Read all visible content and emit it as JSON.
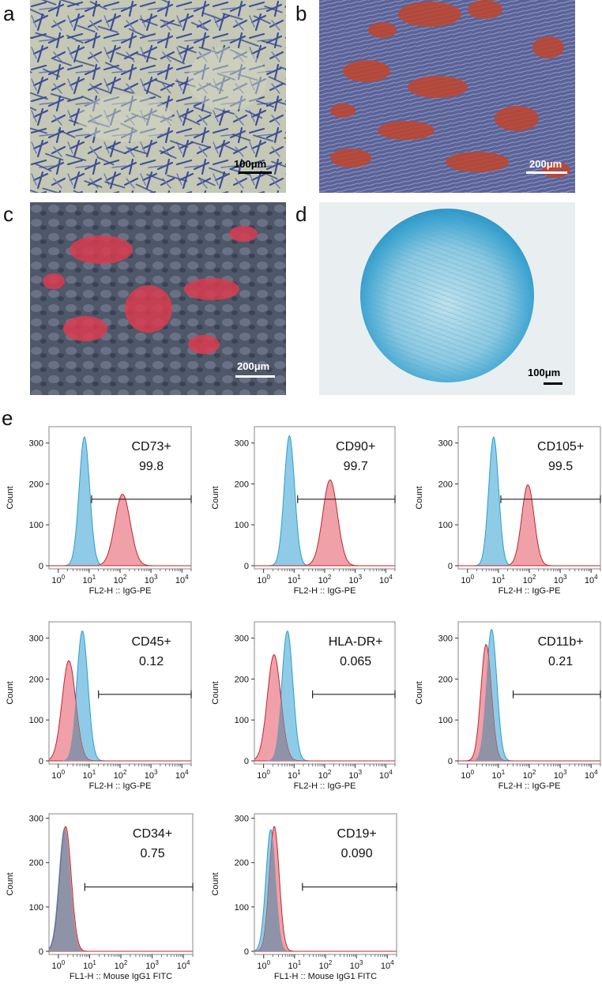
{
  "panels": {
    "a": {
      "label": "a",
      "scale": "100μm"
    },
    "b": {
      "label": "b",
      "scale": "200μm"
    },
    "c": {
      "label": "c",
      "scale": "200μm"
    },
    "d": {
      "label": "d",
      "scale": "100μm"
    },
    "e": {
      "label": "e"
    }
  },
  "colors": {
    "isotype_fill": "#8fcbe6",
    "isotype_line": "#2a9ed2",
    "marker_fill": "#f0a0a8",
    "marker_line": "#c2262e",
    "overlap_fill": "#8e93a8"
  },
  "chart_data": [
    {
      "type": "area",
      "marker": "CD73+",
      "value": "99.8",
      "xlabel": "FL2-H :: IgG-PE",
      "ylabel": "Count",
      "x_scale": "log",
      "xlim": [
        0.5,
        20000
      ],
      "ylim": [
        0,
        340
      ],
      "yticks": [
        0,
        100,
        200,
        300
      ],
      "gate_from": 12,
      "iso_peak": {
        "x": 7,
        "h": 315,
        "w": 0.17
      },
      "marker_peak": {
        "x": 120,
        "h": 175,
        "w": 0.25
      }
    },
    {
      "type": "area",
      "marker": "CD90+",
      "value": "99.7",
      "xlabel": "FL2-H :: IgG-PE",
      "ylabel": "Count",
      "x_scale": "log",
      "xlim": [
        0.5,
        20000
      ],
      "ylim": [
        0,
        340
      ],
      "yticks": [
        0,
        100,
        200,
        300
      ],
      "gate_from": 13,
      "iso_peak": {
        "x": 7,
        "h": 318,
        "w": 0.17
      },
      "marker_peak": {
        "x": 150,
        "h": 210,
        "w": 0.24
      }
    },
    {
      "type": "area",
      "marker": "CD105+",
      "value": "99.5",
      "xlabel": "FL2-H :: IgG-PE",
      "ylabel": "Count",
      "x_scale": "log",
      "xlim": [
        0.5,
        20000
      ],
      "ylim": [
        0,
        340
      ],
      "yticks": [
        0,
        100,
        200,
        300
      ],
      "gate_from": 12,
      "iso_peak": {
        "x": 7,
        "h": 315,
        "w": 0.16
      },
      "marker_peak": {
        "x": 90,
        "h": 198,
        "w": 0.2
      }
    },
    {
      "type": "area",
      "marker": "CD45+",
      "value": "0.12",
      "xlabel": "FL2-H :: IgG-PE",
      "ylabel": "Count",
      "x_scale": "log",
      "xlim": [
        0.5,
        20000
      ],
      "ylim": [
        0,
        340
      ],
      "yticks": [
        0,
        100,
        200,
        300
      ],
      "gate_from": 20,
      "iso_peak": {
        "x": 6,
        "h": 318,
        "w": 0.18
      },
      "marker_peak": {
        "x": 2.2,
        "h": 245,
        "w": 0.22
      }
    },
    {
      "type": "area",
      "marker": "HLA-DR+",
      "value": "0.065",
      "xlabel": "FL2-H :: IgG-PE",
      "ylabel": "Count",
      "x_scale": "log",
      "xlim": [
        0.5,
        20000
      ],
      "ylim": [
        0,
        340
      ],
      "yticks": [
        0,
        100,
        200,
        300
      ],
      "gate_from": 40,
      "iso_peak": {
        "x": 6,
        "h": 318,
        "w": 0.18
      },
      "marker_peak": {
        "x": 2.2,
        "h": 260,
        "w": 0.22
      }
    },
    {
      "type": "area",
      "marker": "CD11b+",
      "value": "0.21",
      "xlabel": "FL2-H :: IgG-PE",
      "ylabel": "Count",
      "x_scale": "log",
      "xlim": [
        0.5,
        20000
      ],
      "ylim": [
        0,
        340
      ],
      "yticks": [
        0,
        100,
        200,
        300
      ],
      "gate_from": 30,
      "iso_peak": {
        "x": 6,
        "h": 322,
        "w": 0.17
      },
      "marker_peak": {
        "x": 4,
        "h": 285,
        "w": 0.17
      }
    },
    {
      "type": "area",
      "marker": "CD34+",
      "value": "0.75",
      "xlabel": "FL1-H :: Mouse IgG1 FITC",
      "ylabel": "Count",
      "x_scale": "log",
      "xlim": [
        0.5,
        20000
      ],
      "ylim": [
        0,
        310
      ],
      "yticks": [
        0,
        100,
        200,
        300
      ],
      "gate_from": 7,
      "iso_peak": {
        "x": 1.6,
        "h": 278,
        "w": 0.18
      },
      "marker_peak": {
        "x": 1.7,
        "h": 282,
        "w": 0.18
      }
    },
    {
      "type": "area",
      "marker": "CD19+",
      "value": "0.090",
      "xlabel": "FL1-H :: Mouse IgG1 FITC",
      "ylabel": "Count",
      "x_scale": "log",
      "xlim": [
        0.5,
        20000
      ],
      "ylim": [
        0,
        310
      ],
      "yticks": [
        0,
        100,
        200,
        300
      ],
      "gate_from": 18,
      "iso_peak": {
        "x": 1.7,
        "h": 275,
        "w": 0.16
      },
      "marker_peak": {
        "x": 2.2,
        "h": 282,
        "w": 0.16
      }
    }
  ]
}
